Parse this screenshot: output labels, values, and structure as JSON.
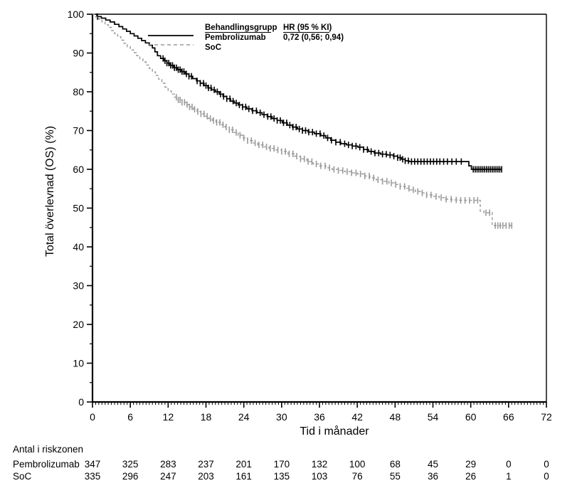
{
  "legend": {
    "header_group": "Behandlingsgrupp",
    "header_hr": "HR (95 % KI)",
    "rows": [
      {
        "label": "Pembrolizumab",
        "hr": "0,72 (0,56; 0,94)",
        "line_style": "solid",
        "color": "#000000"
      },
      {
        "label": "SoC",
        "hr": "",
        "line_style": "dashed",
        "color": "#9a9a9a"
      }
    ]
  },
  "chart_data": {
    "type": "line",
    "subtype": "kaplan-meier-step",
    "title": "",
    "xlabel": "Tid i månader",
    "ylabel": "Total överlevnad (OS) (%)",
    "xlim": [
      0,
      72
    ],
    "ylim": [
      0,
      100
    ],
    "x_major_ticks": [
      0,
      6,
      12,
      18,
      24,
      30,
      36,
      42,
      48,
      54,
      60,
      66,
      72
    ],
    "x_minor_step": 0.5,
    "y_major_ticks": [
      0,
      10,
      20,
      30,
      40,
      50,
      60,
      70,
      80,
      90,
      100
    ],
    "y_minor_step": 5,
    "grid": false,
    "legend_position": "top-inside",
    "series": [
      {
        "name": "Pembrolizumab",
        "color": "#000000",
        "dash": "solid",
        "hr_label": "0,72 (0,56; 0,94)",
        "steps": [
          [
            0.7,
            99.4
          ],
          [
            1.4,
            99.0
          ],
          [
            2.1,
            98.5
          ],
          [
            2.8,
            98.0
          ],
          [
            3.5,
            97.4
          ],
          [
            4.2,
            96.8
          ],
          [
            4.8,
            96.2
          ],
          [
            5.4,
            95.6
          ],
          [
            6.0,
            95.0
          ],
          [
            6.6,
            94.4
          ],
          [
            7.2,
            93.8
          ],
          [
            7.8,
            93.2
          ],
          [
            8.4,
            92.6
          ],
          [
            9.0,
            92.0
          ],
          [
            9.5,
            91.3
          ],
          [
            9.9,
            90.3
          ],
          [
            10.3,
            89.3
          ],
          [
            10.8,
            88.6
          ],
          [
            11.3,
            88.0
          ],
          [
            11.8,
            87.4
          ],
          [
            12.3,
            86.8
          ],
          [
            12.9,
            86.2
          ],
          [
            13.5,
            85.7
          ],
          [
            14.1,
            85.2
          ],
          [
            14.7,
            84.6
          ],
          [
            15.3,
            84.0
          ],
          [
            15.9,
            83.4
          ],
          [
            16.5,
            82.8
          ],
          [
            17.1,
            82.2
          ],
          [
            17.7,
            81.6
          ],
          [
            18.3,
            81.0
          ],
          [
            18.9,
            80.5
          ],
          [
            19.5,
            80.0
          ],
          [
            20.1,
            79.4
          ],
          [
            20.7,
            78.8
          ],
          [
            21.3,
            78.2
          ],
          [
            21.9,
            77.6
          ],
          [
            22.5,
            77.1
          ],
          [
            23.1,
            76.6
          ],
          [
            23.8,
            76.1
          ],
          [
            24.5,
            75.6
          ],
          [
            25.3,
            75.1
          ],
          [
            26.1,
            74.6
          ],
          [
            26.9,
            74.1
          ],
          [
            27.7,
            73.6
          ],
          [
            28.5,
            73.1
          ],
          [
            29.3,
            72.6
          ],
          [
            30.1,
            72.0
          ],
          [
            30.9,
            71.4
          ],
          [
            31.7,
            70.9
          ],
          [
            32.5,
            70.4
          ],
          [
            33.3,
            70.0
          ],
          [
            34.2,
            69.6
          ],
          [
            35.2,
            69.2
          ],
          [
            36.2,
            68.7
          ],
          [
            37.0,
            68.1
          ],
          [
            37.8,
            67.5
          ],
          [
            38.6,
            67.0
          ],
          [
            39.4,
            66.6
          ],
          [
            40.3,
            66.3
          ],
          [
            41.2,
            66.0
          ],
          [
            42.1,
            65.7
          ],
          [
            43.0,
            65.1
          ],
          [
            43.8,
            64.6
          ],
          [
            44.7,
            64.2
          ],
          [
            45.7,
            63.9
          ],
          [
            46.7,
            63.7
          ],
          [
            47.7,
            63.4
          ],
          [
            48.4,
            63.0
          ],
          [
            49.0,
            62.6
          ],
          [
            49.6,
            62.2
          ],
          [
            50.2,
            62.0
          ],
          [
            59.7,
            60.9
          ],
          [
            60.1,
            60.0
          ],
          [
            64.9,
            60.0
          ]
        ],
        "censor_x": [
          0.8,
          11.2,
          11.5,
          11.8,
          12.1,
          12.4,
          12.7,
          13.0,
          13.3,
          13.6,
          13.9,
          14.2,
          14.5,
          14.9,
          15.3,
          15.7,
          16.6,
          17.1,
          17.6,
          18.0,
          18.4,
          18.8,
          19.3,
          19.8,
          20.3,
          20.8,
          21.3,
          21.8,
          22.3,
          22.8,
          23.3,
          23.8,
          24.3,
          24.8,
          25.4,
          26.0,
          26.6,
          27.2,
          27.8,
          28.3,
          28.8,
          29.3,
          29.8,
          30.3,
          30.8,
          31.3,
          31.8,
          32.3,
          32.8,
          33.3,
          33.8,
          34.3,
          34.9,
          35.5,
          36.1,
          36.7,
          37.3,
          37.9,
          38.6,
          39.3,
          40.0,
          40.6,
          41.2,
          41.8,
          42.4,
          43.0,
          43.6,
          44.2,
          44.8,
          45.4,
          46.0,
          46.6,
          47.2,
          47.8,
          48.4,
          48.8,
          49.2,
          49.6,
          50.1,
          50.6,
          51.1,
          51.6,
          52.1,
          52.6,
          53.1,
          53.6,
          54.1,
          54.6,
          55.1,
          55.7,
          56.3,
          57.0,
          57.7,
          58.5,
          60.4,
          60.7,
          61.0,
          61.3,
          61.6,
          61.9,
          62.2,
          62.5,
          62.8,
          63.1,
          63.4,
          63.7,
          64.0,
          64.3,
          64.6,
          64.9
        ]
      },
      {
        "name": "SoC",
        "color": "#9a9a9a",
        "dash": "dashed",
        "hr_label": "",
        "steps": [
          [
            0.5,
            99.3
          ],
          [
            1.0,
            98.7
          ],
          [
            1.5,
            98.0
          ],
          [
            2.0,
            97.3
          ],
          [
            2.5,
            96.6
          ],
          [
            3.0,
            95.8
          ],
          [
            3.5,
            95.0
          ],
          [
            4.0,
            94.2
          ],
          [
            4.5,
            93.3
          ],
          [
            5.0,
            92.5
          ],
          [
            5.5,
            91.6
          ],
          [
            6.0,
            90.8
          ],
          [
            6.5,
            90.1
          ],
          [
            7.0,
            89.3
          ],
          [
            7.5,
            88.5
          ],
          [
            8.0,
            87.7
          ],
          [
            8.5,
            86.9
          ],
          [
            9.0,
            86.0
          ],
          [
            9.5,
            85.1
          ],
          [
            10.0,
            84.2
          ],
          [
            10.5,
            83.2
          ],
          [
            11.0,
            82.2
          ],
          [
            11.5,
            81.2
          ],
          [
            12.0,
            80.2
          ],
          [
            12.5,
            79.4
          ],
          [
            13.0,
            78.6
          ],
          [
            13.6,
            77.9
          ],
          [
            14.2,
            77.3
          ],
          [
            14.8,
            76.7
          ],
          [
            15.4,
            76.1
          ],
          [
            16.0,
            75.5
          ],
          [
            16.6,
            74.9
          ],
          [
            17.2,
            74.3
          ],
          [
            17.8,
            73.7
          ],
          [
            18.4,
            73.1
          ],
          [
            19.0,
            72.6
          ],
          [
            19.6,
            72.1
          ],
          [
            20.3,
            71.5
          ],
          [
            21.0,
            70.9
          ],
          [
            21.7,
            70.2
          ],
          [
            22.4,
            69.5
          ],
          [
            23.1,
            68.8
          ],
          [
            23.8,
            68.1
          ],
          [
            24.6,
            67.4
          ],
          [
            25.4,
            66.8
          ],
          [
            26.2,
            66.3
          ],
          [
            27.1,
            65.8
          ],
          [
            28.0,
            65.4
          ],
          [
            29.0,
            65.0
          ],
          [
            30.0,
            64.6
          ],
          [
            31.0,
            64.0
          ],
          [
            32.0,
            63.4
          ],
          [
            33.0,
            62.7
          ],
          [
            34.0,
            62.0
          ],
          [
            35.0,
            61.4
          ],
          [
            36.0,
            60.9
          ],
          [
            37.0,
            60.4
          ],
          [
            38.0,
            60.0
          ],
          [
            39.0,
            59.7
          ],
          [
            40.0,
            59.4
          ],
          [
            41.0,
            59.1
          ],
          [
            42.0,
            58.8
          ],
          [
            43.0,
            58.3
          ],
          [
            44.0,
            57.8
          ],
          [
            45.0,
            57.3
          ],
          [
            46.0,
            56.9
          ],
          [
            47.0,
            56.5
          ],
          [
            48.0,
            56.1
          ],
          [
            48.8,
            55.6
          ],
          [
            49.6,
            55.1
          ],
          [
            50.4,
            54.7
          ],
          [
            51.2,
            54.3
          ],
          [
            52.0,
            53.9
          ],
          [
            53.0,
            53.4
          ],
          [
            54.0,
            53.0
          ],
          [
            55.0,
            52.7
          ],
          [
            56.0,
            52.3
          ],
          [
            57.0,
            52.1
          ],
          [
            58.0,
            52.0
          ],
          [
            61.5,
            49.2
          ],
          [
            62.1,
            48.8
          ],
          [
            63.4,
            45.5
          ],
          [
            66.5,
            45.5
          ]
        ],
        "censor_x": [
          13.3,
          13.6,
          13.9,
          14.2,
          14.6,
          15.0,
          15.4,
          15.8,
          16.2,
          16.7,
          17.2,
          17.7,
          18.2,
          18.7,
          19.2,
          19.7,
          20.2,
          20.7,
          21.2,
          21.7,
          22.2,
          22.8,
          23.4,
          24.0,
          24.6,
          25.2,
          25.8,
          26.4,
          27.0,
          27.6,
          28.2,
          28.8,
          29.4,
          30.0,
          30.6,
          31.2,
          31.8,
          32.4,
          33.0,
          33.6,
          34.2,
          34.8,
          35.5,
          36.2,
          36.9,
          37.6,
          38.3,
          39.0,
          39.7,
          40.4,
          41.1,
          41.8,
          42.5,
          43.2,
          43.9,
          44.6,
          45.3,
          46.0,
          46.7,
          47.4,
          48.1,
          48.8,
          49.5,
          50.2,
          50.9,
          51.6,
          52.3,
          53.0,
          53.7,
          54.5,
          55.3,
          56.1,
          56.9,
          57.7,
          58.4,
          59.1,
          59.8,
          60.5,
          61.1,
          62.4,
          63.0,
          63.9,
          64.3,
          64.7,
          65.1,
          65.6,
          66.1,
          66.5
        ]
      }
    ]
  },
  "risk_table": {
    "title": "Antal i riskzonen",
    "time_points": [
      0,
      6,
      12,
      18,
      24,
      30,
      36,
      42,
      48,
      54,
      60,
      66,
      72
    ],
    "rows": [
      {
        "label": "Pembrolizumab",
        "counts": [
          347,
          325,
          283,
          237,
          201,
          170,
          132,
          100,
          68,
          45,
          29,
          0,
          0
        ]
      },
      {
        "label": "SoC",
        "counts": [
          335,
          296,
          247,
          203,
          161,
          135,
          103,
          76,
          55,
          36,
          26,
          1,
          0
        ]
      }
    ]
  }
}
